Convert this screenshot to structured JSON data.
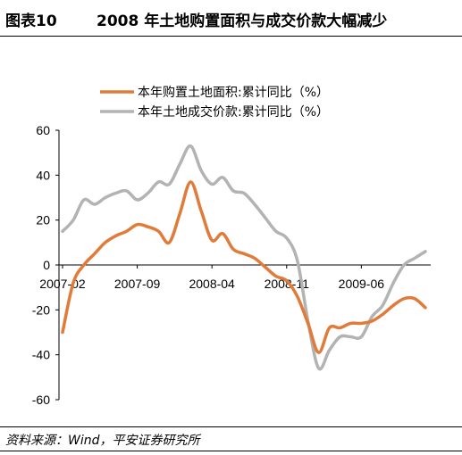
{
  "figure_label": "图表10",
  "title": "2008 年土地购置面积与成交价款大幅减少",
  "source": "资料来源：Wind，平安证券研究所",
  "chart_data": {
    "type": "line",
    "title": "2008 年土地购置面积与成交价款大幅减少",
    "xlabel": "",
    "ylabel": "",
    "x_start": "2007-02",
    "x_tick_labels": [
      "2007-02",
      "2007-09",
      "2008-04",
      "2008-11",
      "2009-06"
    ],
    "x_tick_indices": [
      0,
      7,
      14,
      21,
      28
    ],
    "x_range": [
      0,
      34
    ],
    "ylim": [
      -60,
      60
    ],
    "y_ticks": [
      60,
      40,
      20,
      0,
      -20,
      -40,
      -60
    ],
    "grid": false,
    "legend_position": "top-left",
    "series": [
      {
        "name": "本年购置土地面积:累计同比（%）",
        "color": "#e07b39",
        "x": [
          0,
          1,
          2,
          3,
          4,
          5,
          6,
          7,
          8,
          9,
          10,
          11,
          12,
          13,
          14,
          15,
          16,
          17,
          18,
          19,
          20,
          21,
          22,
          23,
          24,
          25,
          26,
          27,
          28,
          29,
          30,
          31,
          32,
          33,
          34
        ],
        "values": [
          -30,
          -8,
          0,
          5,
          10,
          13,
          15,
          18,
          17,
          15,
          10,
          23,
          37,
          24,
          11,
          14,
          7,
          5,
          3,
          -1,
          -5,
          -7,
          -14,
          -26,
          -39,
          -28,
          -28,
          -26,
          -26,
          -25,
          -22,
          -18,
          -15,
          -15,
          -19
        ]
      },
      {
        "name": "本年土地成交价款:累计同比（%）",
        "color": "#b3b3b3",
        "x": [
          0,
          1,
          2,
          3,
          4,
          5,
          6,
          7,
          8,
          9,
          10,
          11,
          12,
          13,
          14,
          15,
          16,
          17,
          18,
          19,
          20,
          21,
          22,
          23,
          24,
          25,
          26,
          27,
          28,
          29,
          30,
          31,
          32,
          33,
          34
        ],
        "values": [
          15,
          20,
          29,
          27,
          30,
          32,
          33,
          29,
          32,
          37,
          36,
          45,
          53,
          42,
          36,
          39,
          33,
          32,
          27,
          21,
          15,
          12,
          2,
          -25,
          -46,
          -38,
          -32,
          -32,
          -32,
          -23,
          -18,
          -8,
          0,
          3,
          6
        ]
      }
    ]
  }
}
